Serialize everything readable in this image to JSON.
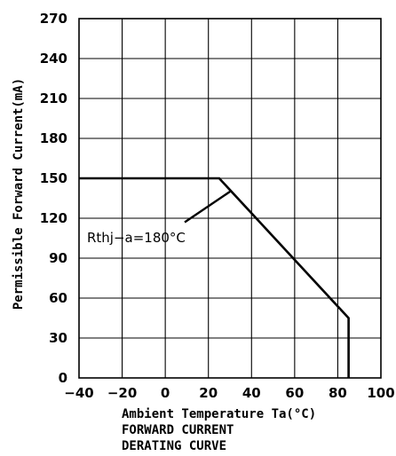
{
  "chart_data": {
    "type": "line",
    "xlabel": "Ambient Temperature Ta(°C)",
    "ylabel": "Permissible Forward Current(mA)",
    "caption_lines": [
      "FORWARD CURRENT",
      "DERATING CURVE"
    ],
    "xlim": [
      -40,
      100
    ],
    "ylim": [
      0,
      270
    ],
    "x_ticks": [
      -40,
      -20,
      0,
      20,
      40,
      60,
      80,
      100
    ],
    "y_ticks": [
      0,
      30,
      60,
      90,
      120,
      150,
      180,
      210,
      240,
      270
    ],
    "x_tick_labels": [
      "−40",
      "−20",
      "0",
      "20",
      "40",
      "60",
      "80",
      "100"
    ],
    "y_tick_labels": [
      "0",
      "30",
      "60",
      "90",
      "120",
      "150",
      "180",
      "210",
      "240",
      "270"
    ],
    "grid": true,
    "series": [
      {
        "x": [
          -40,
          25,
          85,
          85
        ],
        "y": [
          150,
          150,
          45,
          0
        ]
      }
    ],
    "annotation": {
      "text": "Rthj−a=180°C",
      "target": [
        30,
        140
      ],
      "from": [
        9,
        117
      ]
    }
  }
}
